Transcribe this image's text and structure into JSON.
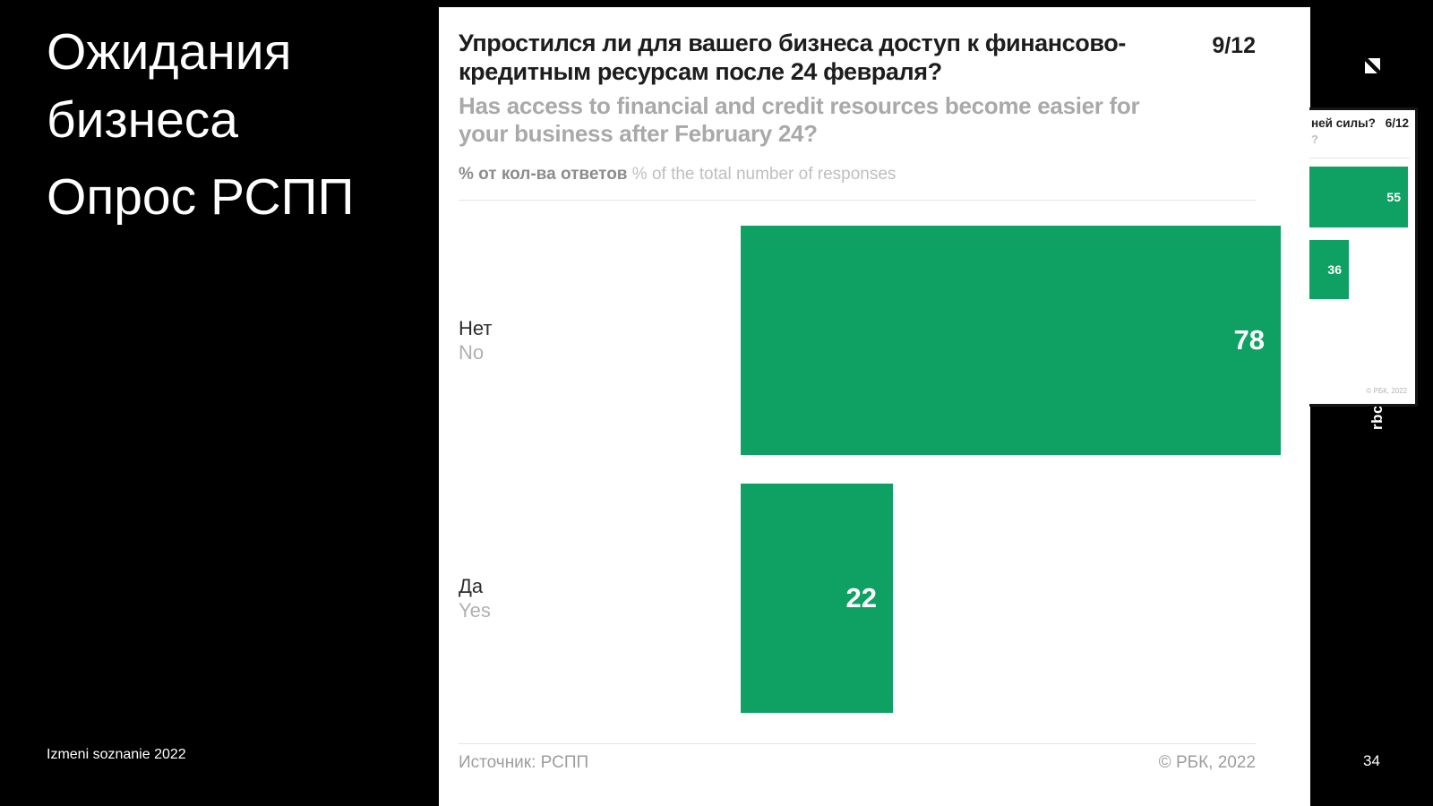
{
  "slide": {
    "title_line1": "Ожидания",
    "title_line2": "бизнеса",
    "subtitle": "Опрос РСПП",
    "footer_left": "Izmeni soznanie 2022",
    "page_number": "34",
    "watermark": "rbc"
  },
  "colors": {
    "accent_green": "#0fa164",
    "slide_background": "#000000",
    "card_background": "#ffffff",
    "title_text": "#1d1d1d",
    "muted_text": "#a9a9a9"
  },
  "chart_data": [
    {
      "type": "bar",
      "orientation": "horizontal",
      "page": "9/12",
      "title_ru": "Упростился ли для вашего бизнеса доступ к финансово-кредитным ресурсам после 24 февраля?",
      "title_en": "Has access to financial and credit resources become easier for your business after February 24?",
      "units_ru": "% от кол-ва ответов",
      "units_en": "% of the total number of responses",
      "categories_ru": [
        "Нет",
        "Да"
      ],
      "categories_en": [
        "No",
        "Yes"
      ],
      "values": [
        78,
        22
      ],
      "xlim": [
        0,
        78
      ],
      "grid": false,
      "legend": "none",
      "source": "Источник: РСПП",
      "copyright": "© РБК, 2022"
    },
    {
      "type": "bar",
      "orientation": "horizontal",
      "page": "6/12",
      "title_fragment": "ней силы?",
      "subtitle_fragment": "?",
      "values": [
        55,
        36
      ],
      "copyright": "© РБК, 2022",
      "note": "partially visible thumbnail of another survey chart"
    }
  ]
}
